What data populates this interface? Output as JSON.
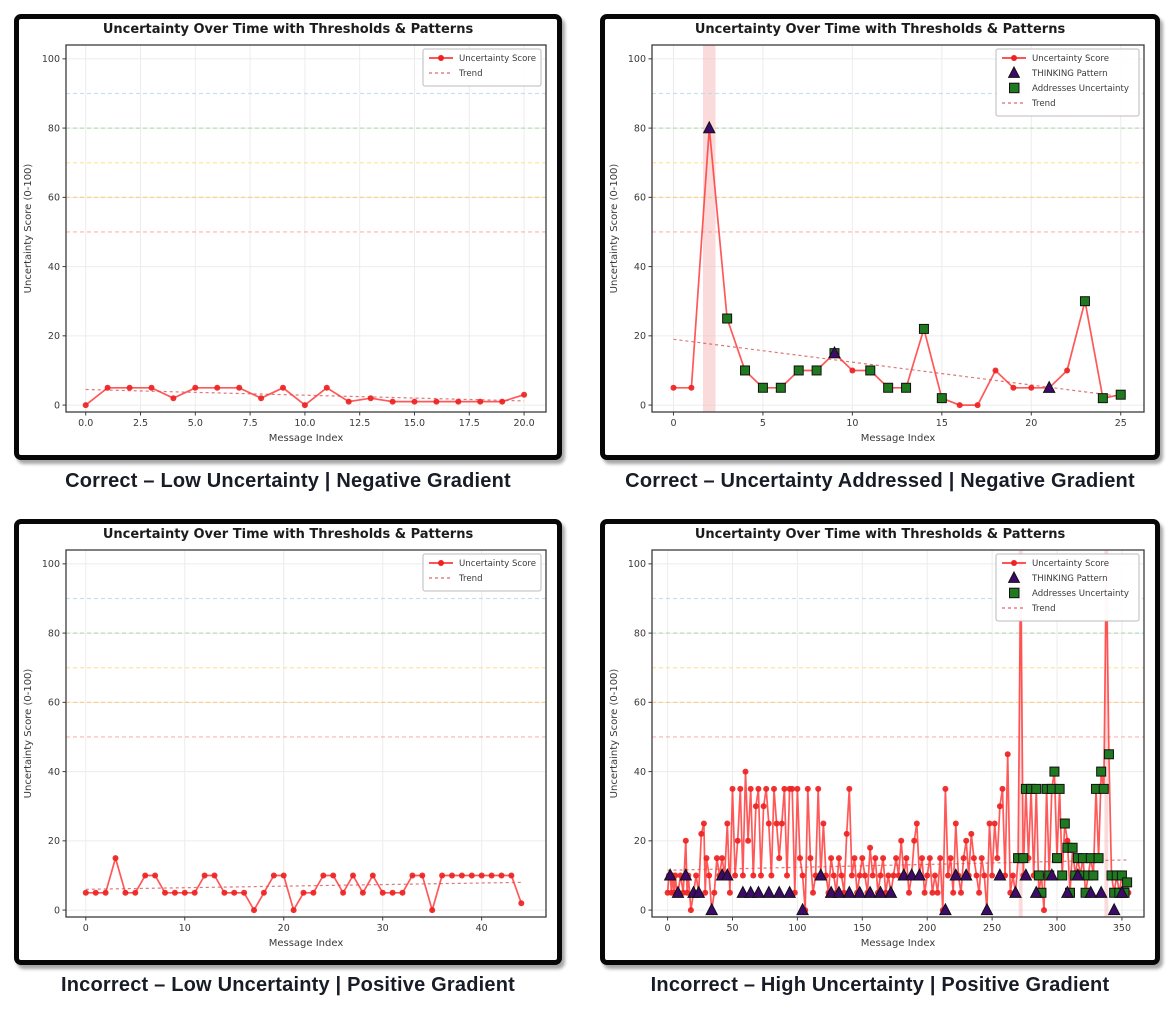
{
  "shared": {
    "title": "Uncertainty Over Time with Thresholds & Patterns",
    "xlabel": "Message Index",
    "ylabel": "Uncertainty Score (0-100)",
    "ylim": [
      -2,
      104
    ],
    "yticks": [
      0,
      20,
      40,
      60,
      80,
      100
    ],
    "grid": true,
    "legend_position": "upper right",
    "legend": {
      "score": "Uncertainty Score",
      "thinking": "THINKING Pattern",
      "addresses": "Addresses Uncertainty",
      "trend": "Trend"
    },
    "thresholds": [
      {
        "y": 90,
        "color": "#b8ddeb"
      },
      {
        "y": 80,
        "color": "#aadcaa"
      },
      {
        "y": 70,
        "color": "#ffe188"
      },
      {
        "y": 60,
        "color": "#ffc87a"
      },
      {
        "y": 50,
        "color": "#ffa3a3"
      }
    ],
    "colors": {
      "line": "#ff3b3b",
      "marker": "#ee2222",
      "trend": "#d96a6a",
      "thinking": "#3d0a6b",
      "addresses": "#1f7a1f",
      "band": "#f6bcbc",
      "grid": "#ececec",
      "spine": "#3c3c3c",
      "text": "#3a3a3a"
    }
  },
  "chart_data": [
    {
      "type": "line",
      "caption": "Correct – Low Uncertainty | Negative Gradient",
      "xlim": [
        -0.9,
        21
      ],
      "xticks": {
        "v": [
          0,
          2.5,
          5,
          7.5,
          10,
          12.5,
          15,
          17.5,
          20
        ],
        "labels": [
          "0.0",
          "2.5",
          "5.0",
          "7.5",
          "10.0",
          "12.5",
          "15.0",
          "17.5",
          "20.0"
        ]
      },
      "y": [
        0,
        5,
        5,
        5,
        2,
        5,
        5,
        5,
        2,
        5,
        0,
        5,
        1,
        2,
        1,
        1,
        1,
        1,
        1,
        1,
        3
      ],
      "trend": [
        4.5,
        1.2
      ],
      "legend": [
        "score",
        "trend"
      ]
    },
    {
      "type": "line",
      "caption": "Correct – Uncertainty Addressed | Negative Gradient",
      "xlim": [
        -1.2,
        26.3
      ],
      "xticks": {
        "v": [
          0,
          5,
          10,
          15,
          20,
          25
        ],
        "labels": [
          "0",
          "5",
          "10",
          "15",
          "20",
          "25"
        ]
      },
      "y": [
        5,
        5,
        80,
        25,
        10,
        5,
        5,
        10,
        10,
        15,
        10,
        10,
        5,
        5,
        22,
        2,
        0,
        0,
        10,
        5,
        5,
        5,
        10,
        30,
        2,
        3
      ],
      "thinking": [
        [
          2,
          80
        ],
        [
          9,
          15
        ],
        [
          21,
          5
        ]
      ],
      "addresses": [
        [
          3,
          25
        ],
        [
          4,
          10
        ],
        [
          5,
          5
        ],
        [
          6,
          5
        ],
        [
          7,
          10
        ],
        [
          8,
          10
        ],
        [
          9,
          15
        ],
        [
          11,
          10
        ],
        [
          12,
          5
        ],
        [
          13,
          5
        ],
        [
          14,
          22
        ],
        [
          15,
          2
        ],
        [
          23,
          30
        ],
        [
          24,
          2
        ],
        [
          25,
          3
        ]
      ],
      "bands": [
        [
          1.65,
          2.35
        ]
      ],
      "trend": [
        19,
        2.5
      ],
      "legend": [
        "score",
        "thinking",
        "addresses",
        "trend"
      ]
    },
    {
      "type": "line",
      "caption": "Incorrect – Low Uncertainty | Positive Gradient",
      "xlim": [
        -2,
        46.5
      ],
      "xticks": {
        "v": [
          0,
          10,
          20,
          30,
          40
        ],
        "labels": [
          "0",
          "10",
          "20",
          "30",
          "40"
        ]
      },
      "y": [
        5,
        5,
        5,
        15,
        5,
        5,
        10,
        10,
        5,
        5,
        5,
        5,
        10,
        10,
        5,
        5,
        5,
        0,
        5,
        10,
        10,
        0,
        5,
        5,
        10,
        10,
        5,
        10,
        5,
        10,
        5,
        5,
        5,
        10,
        10,
        0,
        10,
        10,
        10,
        10,
        10,
        10,
        10,
        10,
        2
      ],
      "trend": [
        6,
        8
      ],
      "legend": [
        "score",
        "trend"
      ]
    },
    {
      "type": "line",
      "caption": "Incorrect – High Uncertainty | Positive Gradient",
      "xlim": [
        -12,
        367
      ],
      "xticks": {
        "v": [
          0,
          50,
          100,
          150,
          200,
          250,
          300,
          350
        ],
        "labels": [
          "0",
          "50",
          "100",
          "150",
          "200",
          "250",
          "300",
          "350"
        ]
      },
      "points": [
        [
          0,
          5
        ],
        [
          1,
          10
        ],
        [
          2,
          10
        ],
        [
          3,
          5
        ],
        [
          4,
          10
        ],
        [
          5,
          5
        ],
        [
          6,
          10
        ],
        [
          7,
          5
        ],
        [
          8,
          5
        ],
        [
          10,
          10
        ],
        [
          12,
          5
        ],
        [
          14,
          20
        ],
        [
          15,
          5
        ],
        [
          16,
          10
        ],
        [
          18,
          0
        ],
        [
          20,
          5
        ],
        [
          22,
          10
        ],
        [
          24,
          5
        ],
        [
          26,
          22
        ],
        [
          28,
          25
        ],
        [
          29,
          5
        ],
        [
          30,
          15
        ],
        [
          32,
          10
        ],
        [
          34,
          0
        ],
        [
          36,
          5
        ],
        [
          38,
          15
        ],
        [
          40,
          10
        ],
        [
          42,
          15
        ],
        [
          44,
          10
        ],
        [
          46,
          25
        ],
        [
          48,
          5
        ],
        [
          50,
          35
        ],
        [
          52,
          10
        ],
        [
          54,
          20
        ],
        [
          56,
          35
        ],
        [
          58,
          10
        ],
        [
          60,
          40
        ],
        [
          62,
          20
        ],
        [
          64,
          35
        ],
        [
          66,
          10
        ],
        [
          68,
          30
        ],
        [
          70,
          35
        ],
        [
          72,
          10
        ],
        [
          74,
          30
        ],
        [
          76,
          35
        ],
        [
          78,
          25
        ],
        [
          80,
          10
        ],
        [
          82,
          35
        ],
        [
          84,
          25
        ],
        [
          86,
          15
        ],
        [
          88,
          25
        ],
        [
          90,
          35
        ],
        [
          92,
          10
        ],
        [
          94,
          35
        ],
        [
          96,
          35
        ],
        [
          98,
          5
        ],
        [
          100,
          35
        ],
        [
          102,
          15
        ],
        [
          104,
          10
        ],
        [
          106,
          0
        ],
        [
          108,
          35
        ],
        [
          110,
          15
        ],
        [
          112,
          5
        ],
        [
          114,
          10
        ],
        [
          116,
          35
        ],
        [
          118,
          10
        ],
        [
          120,
          25
        ],
        [
          122,
          10
        ],
        [
          124,
          5
        ],
        [
          126,
          15
        ],
        [
          128,
          10
        ],
        [
          130,
          5
        ],
        [
          132,
          15
        ],
        [
          134,
          10
        ],
        [
          136,
          5
        ],
        [
          138,
          22
        ],
        [
          140,
          35
        ],
        [
          142,
          10
        ],
        [
          144,
          15
        ],
        [
          146,
          5
        ],
        [
          148,
          10
        ],
        [
          150,
          15
        ],
        [
          152,
          10
        ],
        [
          154,
          5
        ],
        [
          156,
          18
        ],
        [
          158,
          10
        ],
        [
          160,
          15
        ],
        [
          162,
          5
        ],
        [
          164,
          10
        ],
        [
          166,
          15
        ],
        [
          168,
          5
        ],
        [
          170,
          10
        ],
        [
          172,
          5
        ],
        [
          174,
          10
        ],
        [
          176,
          15
        ],
        [
          178,
          10
        ],
        [
          180,
          20
        ],
        [
          182,
          10
        ],
        [
          184,
          15
        ],
        [
          186,
          5
        ],
        [
          188,
          10
        ],
        [
          190,
          20
        ],
        [
          192,
          25
        ],
        [
          194,
          10
        ],
        [
          196,
          15
        ],
        [
          198,
          5
        ],
        [
          200,
          10
        ],
        [
          202,
          15
        ],
        [
          204,
          5
        ],
        [
          206,
          10
        ],
        [
          208,
          5
        ],
        [
          210,
          15
        ],
        [
          212,
          0
        ],
        [
          214,
          35
        ],
        [
          216,
          10
        ],
        [
          218,
          15
        ],
        [
          220,
          5
        ],
        [
          222,
          25
        ],
        [
          224,
          10
        ],
        [
          226,
          5
        ],
        [
          228,
          15
        ],
        [
          230,
          20
        ],
        [
          232,
          10
        ],
        [
          234,
          22
        ],
        [
          236,
          15
        ],
        [
          238,
          10
        ],
        [
          240,
          5
        ],
        [
          242,
          15
        ],
        [
          244,
          10
        ],
        [
          246,
          0
        ],
        [
          248,
          25
        ],
        [
          250,
          10
        ],
        [
          252,
          25
        ],
        [
          254,
          15
        ],
        [
          256,
          30
        ],
        [
          258,
          35
        ],
        [
          260,
          10
        ],
        [
          262,
          45
        ],
        [
          264,
          5
        ],
        [
          266,
          10
        ],
        [
          268,
          5
        ],
        [
          270,
          15
        ],
        [
          272,
          100
        ],
        [
          274,
          10
        ],
        [
          276,
          35
        ],
        [
          278,
          15
        ],
        [
          280,
          35
        ],
        [
          282,
          10
        ],
        [
          284,
          35
        ],
        [
          286,
          5
        ],
        [
          288,
          10
        ],
        [
          290,
          0
        ],
        [
          292,
          35
        ],
        [
          294,
          10
        ],
        [
          296,
          35
        ],
        [
          298,
          40
        ],
        [
          300,
          15
        ],
        [
          302,
          35
        ],
        [
          304,
          10
        ],
        [
          306,
          25
        ],
        [
          308,
          20
        ],
        [
          310,
          5
        ],
        [
          312,
          18
        ],
        [
          314,
          10
        ],
        [
          316,
          15
        ],
        [
          318,
          10
        ],
        [
          320,
          15
        ],
        [
          322,
          5
        ],
        [
          324,
          10
        ],
        [
          326,
          15
        ],
        [
          328,
          10
        ],
        [
          330,
          35
        ],
        [
          332,
          15
        ],
        [
          334,
          40
        ],
        [
          336,
          35
        ],
        [
          338,
          100
        ],
        [
          340,
          45
        ],
        [
          342,
          10
        ],
        [
          344,
          5
        ],
        [
          346,
          10
        ],
        [
          348,
          5
        ],
        [
          350,
          10
        ],
        [
          352,
          5
        ],
        [
          354,
          8
        ],
        [
          355,
          5
        ]
      ],
      "thinking": [
        [
          2,
          10
        ],
        [
          8,
          5
        ],
        [
          14,
          10
        ],
        [
          20,
          5
        ],
        [
          24,
          5
        ],
        [
          34,
          0
        ],
        [
          42,
          10
        ],
        [
          46,
          10
        ],
        [
          58,
          5
        ],
        [
          64,
          5
        ],
        [
          70,
          5
        ],
        [
          78,
          5
        ],
        [
          86,
          5
        ],
        [
          94,
          5
        ],
        [
          104,
          0
        ],
        [
          118,
          10
        ],
        [
          126,
          5
        ],
        [
          132,
          5
        ],
        [
          140,
          5
        ],
        [
          148,
          5
        ],
        [
          156,
          5
        ],
        [
          164,
          5
        ],
        [
          172,
          5
        ],
        [
          182,
          10
        ],
        [
          188,
          10
        ],
        [
          194,
          10
        ],
        [
          214,
          0
        ],
        [
          222,
          10
        ],
        [
          230,
          10
        ],
        [
          246,
          0
        ],
        [
          256,
          10
        ],
        [
          268,
          5
        ],
        [
          276,
          10
        ],
        [
          284,
          5
        ],
        [
          296,
          10
        ],
        [
          308,
          5
        ],
        [
          316,
          10
        ],
        [
          326,
          5
        ],
        [
          334,
          5
        ],
        [
          344,
          0
        ],
        [
          350,
          5
        ]
      ],
      "addresses": [
        [
          270,
          15
        ],
        [
          274,
          15
        ],
        [
          276,
          35
        ],
        [
          280,
          35
        ],
        [
          284,
          35
        ],
        [
          286,
          10
        ],
        [
          288,
          5
        ],
        [
          292,
          35
        ],
        [
          294,
          10
        ],
        [
          296,
          35
        ],
        [
          298,
          40
        ],
        [
          300,
          15
        ],
        [
          302,
          35
        ],
        [
          304,
          10
        ],
        [
          306,
          25
        ],
        [
          308,
          18
        ],
        [
          310,
          5
        ],
        [
          312,
          18
        ],
        [
          314,
          10
        ],
        [
          316,
          15
        ],
        [
          318,
          10
        ],
        [
          320,
          15
        ],
        [
          322,
          5
        ],
        [
          324,
          10
        ],
        [
          326,
          15
        ],
        [
          328,
          10
        ],
        [
          330,
          35
        ],
        [
          332,
          15
        ],
        [
          334,
          40
        ],
        [
          336,
          35
        ],
        [
          340,
          45
        ],
        [
          342,
          10
        ],
        [
          344,
          5
        ],
        [
          346,
          10
        ],
        [
          348,
          5
        ],
        [
          350,
          10
        ],
        [
          352,
          5
        ],
        [
          354,
          8
        ]
      ],
      "bands": [
        [
          270.5,
          273.5
        ],
        [
          336.5,
          339.5
        ]
      ],
      "trend": [
        11.5,
        14.5
      ],
      "legend": [
        "score",
        "thinking",
        "addresses",
        "trend"
      ]
    }
  ]
}
